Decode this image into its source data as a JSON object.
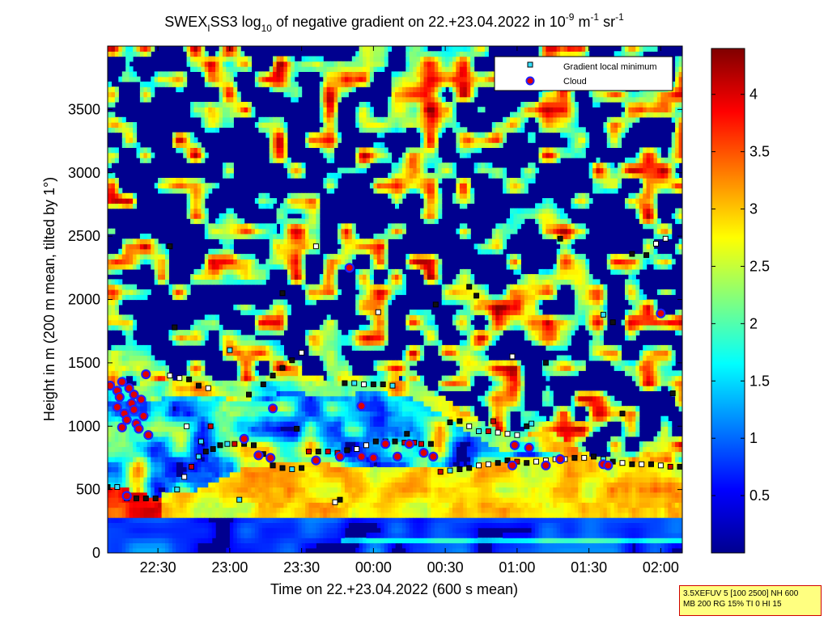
{
  "chart_data": {
    "type": "heatmap",
    "title": {
      "p1": "SWEX",
      "sub1": "I",
      "p2": "SS3 log",
      "sub2": "10",
      "p3": " of negative gradient on 22.+23.04.2022 in 10",
      "sup1": "-9",
      "p4": " m",
      "sup2": "-1",
      "p5": " sr",
      "sup3": "-1"
    },
    "xlabel": "Time on 22.+23.04.2022 (600 s mean)",
    "ylabel": "Height in m (200 m mean, tilted by 1°)",
    "x_range": [
      "22:09",
      "02:09"
    ],
    "x_ticks": [
      "22:30",
      "23:00",
      "23:30",
      "00:00",
      "00:30",
      "01:00",
      "01:30",
      "02:00"
    ],
    "y_range": [
      0,
      4000
    ],
    "y_ticks": [
      0,
      500,
      1000,
      1500,
      2000,
      2500,
      3000,
      3500
    ],
    "colorbar": {
      "range": [
        0,
        4.4
      ],
      "ticks": [
        0.5,
        1,
        1.5,
        2,
        2.5,
        3,
        3.5,
        4
      ],
      "colormap": "jet"
    },
    "legend": {
      "position": "top-right",
      "entries": [
        {
          "label": "Gradient local minimum",
          "color": "#33e0ff",
          "marker": "square"
        },
        {
          "label": "Cloud",
          "color": "#e00000",
          "edge": "#2020ff",
          "marker": "circle"
        }
      ]
    },
    "structures": {
      "surface_layer_top_m": 250,
      "lower_layer_top_m": [
        520,
        430,
        480,
        650,
        700,
        680,
        660,
        640,
        660,
        720,
        730,
        720,
        700,
        690
      ],
      "residual_layer_top_m": [
        1300,
        1330,
        1380,
        1320,
        1400,
        1350,
        1400,
        1330,
        1100,
        900,
        940,
        720,
        730,
        680
      ]
    },
    "series": [
      {
        "name": "Gradient local minimum",
        "points": [
          [
            "22:09",
            520
          ],
          [
            "22:13",
            520
          ],
          [
            "22:17",
            430
          ],
          [
            "22:21",
            430
          ],
          [
            "22:25",
            430
          ],
          [
            "22:29",
            430
          ],
          [
            "22:38",
            500
          ],
          [
            "22:41",
            600
          ],
          [
            "22:44",
            680
          ],
          [
            "22:47",
            760
          ],
          [
            "22:50",
            800
          ],
          [
            "22:53",
            820
          ],
          [
            "22:56",
            850
          ],
          [
            "22:59",
            860
          ],
          [
            "23:02",
            860
          ],
          [
            "23:06",
            860
          ],
          [
            "23:10",
            850
          ],
          [
            "23:14",
            780
          ],
          [
            "23:18",
            690
          ],
          [
            "23:22",
            670
          ],
          [
            "23:26",
            660
          ],
          [
            "23:30",
            670
          ],
          [
            "23:33",
            800
          ],
          [
            "23:37",
            800
          ],
          [
            "23:41",
            800
          ],
          [
            "23:45",
            790
          ],
          [
            "23:49",
            810
          ],
          [
            "23:53",
            820
          ],
          [
            "23:57",
            850
          ],
          [
            "00:01",
            880
          ],
          [
            "00:05",
            880
          ],
          [
            "00:09",
            880
          ],
          [
            "00:13",
            870
          ],
          [
            "00:17",
            870
          ],
          [
            "00:20",
            860
          ],
          [
            "00:24",
            860
          ],
          [
            "00:28",
            640
          ],
          [
            "00:32",
            650
          ],
          [
            "00:36",
            660
          ],
          [
            "00:40",
            670
          ],
          [
            "00:44",
            690
          ],
          [
            "00:48",
            700
          ],
          [
            "00:52",
            710
          ],
          [
            "00:56",
            730
          ],
          [
            "01:00",
            720
          ],
          [
            "01:04",
            710
          ],
          [
            "01:08",
            720
          ],
          [
            "01:12",
            730
          ],
          [
            "01:16",
            740
          ],
          [
            "01:20",
            740
          ],
          [
            "01:24",
            750
          ],
          [
            "01:28",
            750
          ],
          [
            "01:32",
            760
          ],
          [
            "01:36",
            740
          ],
          [
            "01:40",
            720
          ],
          [
            "01:44",
            710
          ],
          [
            "01:48",
            700
          ],
          [
            "01:52",
            700
          ],
          [
            "01:56",
            700
          ],
          [
            "02:00",
            690
          ],
          [
            "02:04",
            680
          ],
          [
            "02:08",
            680
          ],
          [
            "22:35",
            1400
          ],
          [
            "22:39",
            1380
          ],
          [
            "22:43",
            1370
          ],
          [
            "22:47",
            1320
          ],
          [
            "22:51",
            1300
          ],
          [
            "23:08",
            1250
          ],
          [
            "23:14",
            1330
          ],
          [
            "23:18",
            1400
          ],
          [
            "23:22",
            1460
          ],
          [
            "23:26",
            1520
          ],
          [
            "23:30",
            1580
          ],
          [
            "23:48",
            1340
          ],
          [
            "23:52",
            1340
          ],
          [
            "23:56",
            1330
          ],
          [
            "00:00",
            1330
          ],
          [
            "00:04",
            1330
          ],
          [
            "00:08",
            1320
          ],
          [
            "00:32",
            1030
          ],
          [
            "00:36",
            1040
          ],
          [
            "00:40",
            1000
          ],
          [
            "00:44",
            960
          ],
          [
            "00:48",
            960
          ],
          [
            "00:52",
            950
          ],
          [
            "00:56",
            940
          ],
          [
            "01:00",
            930
          ],
          [
            "01:04",
            1000
          ],
          [
            "22:35",
            2420
          ],
          [
            "22:37",
            1780
          ],
          [
            "23:00",
            1600
          ],
          [
            "23:36",
            2420
          ],
          [
            "00:26",
            1960
          ],
          [
            "00:40",
            2100
          ],
          [
            "00:43",
            2030
          ],
          [
            "00:58",
            1550
          ],
          [
            "01:12",
            1500
          ],
          [
            "01:18",
            2480
          ],
          [
            "01:36",
            1880
          ],
          [
            "01:40",
            1820
          ],
          [
            "01:48",
            2360
          ],
          [
            "01:54",
            2350
          ],
          [
            "01:58",
            2440
          ],
          [
            "02:02",
            2480
          ],
          [
            "00:02",
            1900
          ],
          [
            "23:22",
            2050
          ],
          [
            "23:44",
            400
          ],
          [
            "23:46",
            420
          ],
          [
            "23:04",
            420
          ],
          [
            "22:48",
            880
          ],
          [
            "22:52",
            1000
          ],
          [
            "22:42",
            1000
          ],
          [
            "23:28",
            980
          ],
          [
            "00:14",
            940
          ],
          [
            "01:06",
            1020
          ],
          [
            "00:50",
            1040
          ],
          [
            "01:44",
            1100
          ],
          [
            "02:05",
            1260
          ]
        ]
      },
      {
        "name": "Cloud",
        "points": [
          [
            "22:10",
            1320
          ],
          [
            "22:13",
            1280
          ],
          [
            "22:14",
            1230
          ],
          [
            "22:15",
            1350
          ],
          [
            "22:16",
            1100
          ],
          [
            "22:17",
            1050
          ],
          [
            "22:18",
            1300
          ],
          [
            "22:19",
            1180
          ],
          [
            "22:20",
            1130
          ],
          [
            "22:21",
            1020
          ],
          [
            "22:22",
            980
          ],
          [
            "22:23",
            1210
          ],
          [
            "22:24",
            1080
          ],
          [
            "22:25",
            1410
          ],
          [
            "22:26",
            930
          ],
          [
            "22:13",
            1150
          ],
          [
            "22:15",
            990
          ],
          [
            "22:20",
            1250
          ],
          [
            "22:17",
            450
          ],
          [
            "23:06",
            900
          ],
          [
            "23:12",
            770
          ],
          [
            "23:18",
            1140
          ],
          [
            "23:17",
            750
          ],
          [
            "23:36",
            730
          ],
          [
            "23:46",
            760
          ],
          [
            "23:50",
            2250
          ],
          [
            "23:55",
            1160
          ],
          [
            "23:55",
            760
          ],
          [
            "24:00",
            750
          ],
          [
            "00:05",
            860
          ],
          [
            "00:10",
            760
          ],
          [
            "00:15",
            860
          ],
          [
            "00:21",
            790
          ],
          [
            "00:25",
            760
          ],
          [
            "00:58",
            690
          ],
          [
            "00:59",
            850
          ],
          [
            "01:05",
            830
          ],
          [
            "01:12",
            690
          ],
          [
            "01:18",
            740
          ],
          [
            "01:36",
            700
          ],
          [
            "01:38",
            690
          ],
          [
            "02:00",
            1890
          ]
        ]
      }
    ]
  },
  "info_box": {
    "line1": "3.5XEFUV 5 [100 2500] NH 600",
    "line2": "MB 200 RG 15% TI 0 HI 15"
  }
}
